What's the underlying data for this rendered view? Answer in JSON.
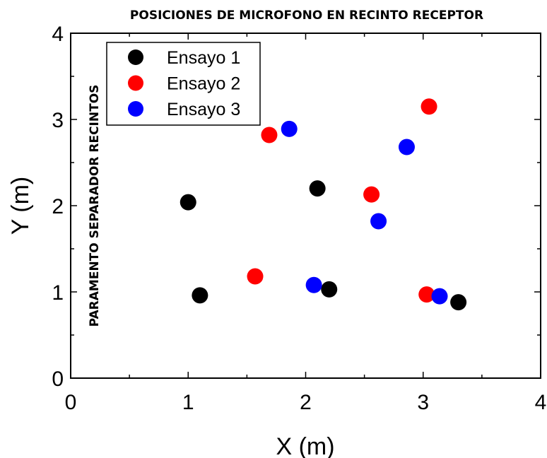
{
  "chart_data": {
    "type": "scatter",
    "title": "POSICIONES DE MICROFONO EN RECINTO RECEPTOR",
    "xlabel": "X (m)",
    "ylabel": "Y (m)",
    "xlim": [
      0,
      4
    ],
    "ylim": [
      0,
      4
    ],
    "xticks": [
      "0",
      "1",
      "2",
      "3",
      "4"
    ],
    "yticks": [
      "0",
      "1",
      "2",
      "3",
      "4"
    ],
    "grid": false,
    "legend_position": "top-left",
    "annotation": "PARAMENTO SEPARADOR RECINTOS",
    "series": [
      {
        "name": "Ensayo 1",
        "color": "#000000",
        "points": [
          {
            "x": 1.0,
            "y": 2.04
          },
          {
            "x": 1.1,
            "y": 0.96
          },
          {
            "x": 2.1,
            "y": 2.2
          },
          {
            "x": 2.2,
            "y": 1.03
          },
          {
            "x": 3.3,
            "y": 0.88
          }
        ]
      },
      {
        "name": "Ensayo 2",
        "color": "#ff0000",
        "points": [
          {
            "x": 1.57,
            "y": 1.18
          },
          {
            "x": 1.69,
            "y": 2.82
          },
          {
            "x": 2.56,
            "y": 2.13
          },
          {
            "x": 3.03,
            "y": 0.97
          },
          {
            "x": 3.05,
            "y": 3.15
          }
        ]
      },
      {
        "name": "Ensayo 3",
        "color": "#0000ff",
        "points": [
          {
            "x": 1.86,
            "y": 2.89
          },
          {
            "x": 2.07,
            "y": 1.08
          },
          {
            "x": 2.62,
            "y": 1.82
          },
          {
            "x": 2.86,
            "y": 2.68
          },
          {
            "x": 3.14,
            "y": 0.95
          }
        ]
      }
    ]
  }
}
